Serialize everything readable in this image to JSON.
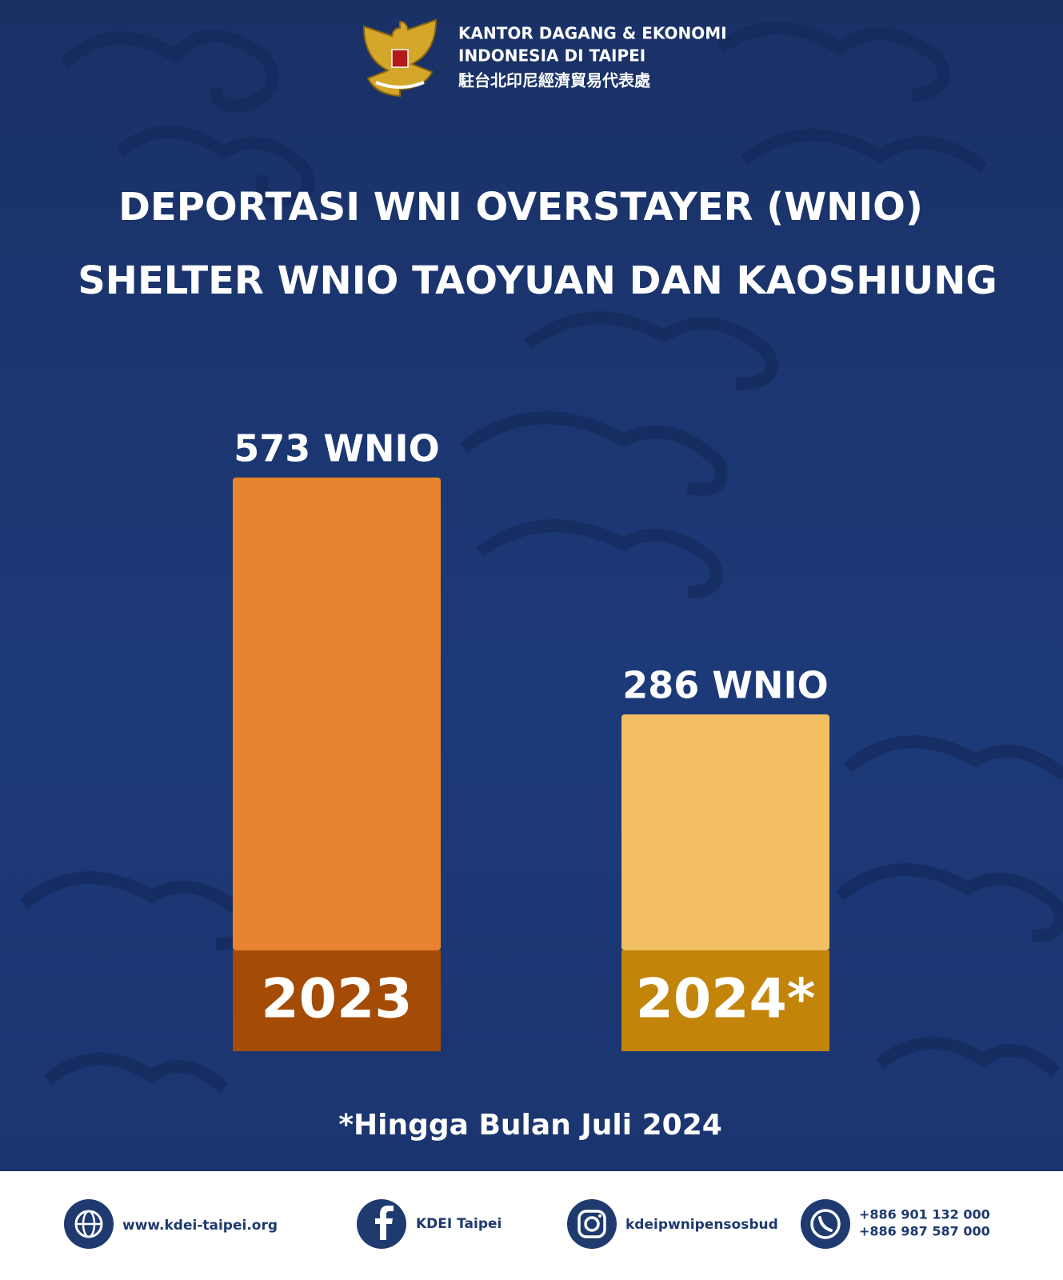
{
  "header": {
    "org_lines": [
      "KANTOR DAGANG & EKONOMI",
      "INDONESIA DI TAIPEI",
      "駐台北印尼經濟貿易代表處"
    ]
  },
  "chart_data": {
    "type": "bar",
    "title": "DEPORTASI  WNI OVERSTAYER (WNIO)",
    "subtitle": "SHELTER WNIO TAOYUAN DAN KAOSHIUNG",
    "categories": [
      "2023",
      "2024*"
    ],
    "values": [
      573,
      286
    ],
    "value_labels": [
      "573 WNIO",
      "286 WNIO"
    ],
    "colors": [
      "#e8832f",
      "#f2c063"
    ],
    "category_colors": [
      "#a44b05",
      "#c3840a"
    ],
    "ylim": [
      0,
      600
    ],
    "note": "*Hingga Bulan Juli 2024"
  },
  "footer": {
    "website": "www.kdei-taipei.org",
    "facebook": "KDEI Taipei",
    "instagram": "kdeipwnipensosbud",
    "phones": [
      "+886 901 132 000",
      "+886 987 587 000"
    ]
  }
}
